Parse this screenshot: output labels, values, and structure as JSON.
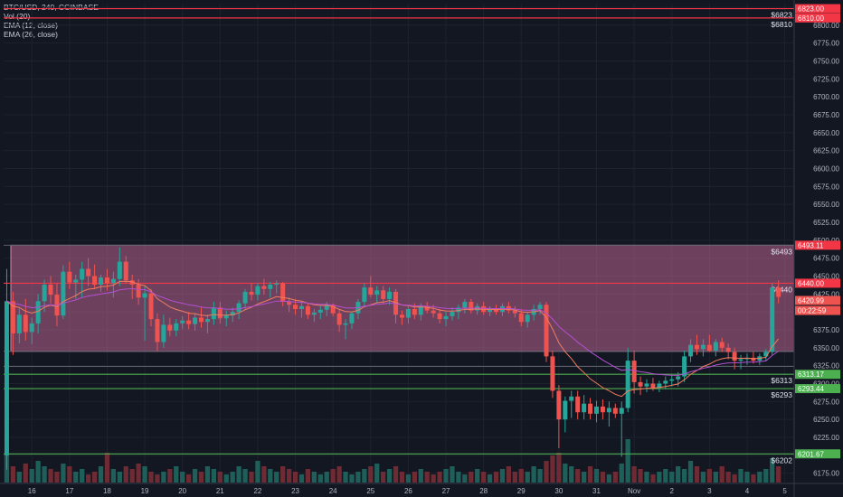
{
  "legend": {
    "symbol": "BTC/USD, 240, COINBASE",
    "vol": "Vol (20)",
    "ema12": "EMA (12, close)",
    "ema26": "EMA (26, close)"
  },
  "colors": {
    "background": "#131722",
    "up": "#26a69a",
    "down": "#ef5350",
    "ema12": "#f07c5e",
    "ema26": "#b44fd1",
    "zone_fill": "#c76b9a",
    "resistance": "#f23645",
    "support": "#4caf50",
    "volume_up": "#1f5f5a",
    "volume_down": "#6e2b33"
  },
  "chart_data": {
    "type": "candlestick",
    "y_axis": {
      "min": 6162,
      "max": 6830,
      "ticks": [
        6175,
        6200,
        6225,
        6250,
        6275,
        6300,
        6325,
        6350,
        6375,
        6400,
        6425,
        6450,
        6475,
        6500,
        6525,
        6550,
        6575,
        6600,
        6625,
        6650,
        6675,
        6700,
        6725,
        6750,
        6775,
        6800,
        6825
      ],
      "tick_labels": [
        "6175.00",
        "6200.00",
        "6225.00",
        "6250.00",
        "6275.00",
        "6300.00",
        "6325.00",
        "6350.00",
        "6375.00",
        "6400.00",
        "6425.00",
        "6450.00",
        "6475.00",
        "6500.00",
        "6525.00",
        "6550.00",
        "6575.00",
        "6600.00",
        "6625.00",
        "6650.00",
        "6675.00",
        "6700.00",
        "6725.00",
        "6750.00",
        "6775.00",
        "6800.00",
        "6825.00"
      ]
    },
    "x_axis": {
      "labels": [
        "16",
        "17",
        "18",
        "19",
        "20",
        "21",
        "22",
        "23",
        "24",
        "25",
        "26",
        "27",
        "28",
        "29",
        "30",
        "31",
        "Nov",
        "2",
        "3",
        "4",
        "5"
      ],
      "bars_per_day": 6,
      "start_offset": -2
    },
    "zone": {
      "top": 6493,
      "bottom": 6345
    },
    "resistance_lines": [
      {
        "price": 6823,
        "label": "$6823"
      },
      {
        "price": 6810,
        "label": "$6810"
      },
      {
        "price": 6440,
        "label": "$6440"
      }
    ],
    "support_lines": [
      {
        "price": 6313,
        "label": "$6313"
      },
      {
        "price": 6293,
        "label": "$6293"
      },
      {
        "price": 6202,
        "label": "$6202"
      }
    ],
    "grey_lines": [
      6493,
      6345,
      6324
    ],
    "price_tags": [
      {
        "price": 6823,
        "text": "6823.00",
        "color": "#f23645"
      },
      {
        "price": 6810,
        "text": "6810.00",
        "color": "#f23645"
      },
      {
        "price": 6493,
        "text": "6493.11",
        "color": "#f23645"
      },
      {
        "price": 6440,
        "text": "6440.00",
        "color": "#f23645"
      },
      {
        "price": 6416,
        "text": "6420.99",
        "color": "#ef5350"
      },
      {
        "price": 6402,
        "text": "00:22:59",
        "color": "#ef5350"
      },
      {
        "price": 6313,
        "text": "6313.17",
        "color": "#4caf50"
      },
      {
        "price": 6293,
        "text": "6293.44",
        "color": "#4caf50"
      },
      {
        "price": 6202,
        "text": "6201.67",
        "color": "#4caf50"
      }
    ],
    "candles": [
      [
        6200,
        6460,
        6180,
        6415
      ],
      [
        6415,
        6428,
        6340,
        6370
      ],
      [
        6370,
        6405,
        6356,
        6396
      ],
      [
        6396,
        6418,
        6360,
        6372
      ],
      [
        6372,
        6392,
        6355,
        6384
      ],
      [
        6384,
        6425,
        6370,
        6415
      ],
      [
        6415,
        6445,
        6400,
        6438
      ],
      [
        6438,
        6450,
        6412,
        6424
      ],
      [
        6424,
        6440,
        6380,
        6395
      ],
      [
        6395,
        6465,
        6390,
        6456
      ],
      [
        6456,
        6470,
        6432,
        6441
      ],
      [
        6441,
        6452,
        6418,
        6445
      ],
      [
        6445,
        6470,
        6420,
        6460
      ],
      [
        6460,
        6475,
        6436,
        6450
      ],
      [
        6450,
        6466,
        6432,
        6438
      ],
      [
        6438,
        6452,
        6428,
        6448
      ],
      [
        6448,
        6460,
        6430,
        6440
      ],
      [
        6440,
        6456,
        6420,
        6446
      ],
      [
        6446,
        6490,
        6436,
        6470
      ],
      [
        6470,
        6478,
        6440,
        6444
      ],
      [
        6444,
        6452,
        6418,
        6438
      ],
      [
        6438,
        6446,
        6410,
        6420
      ],
      [
        6420,
        6436,
        6360,
        6426
      ],
      [
        6426,
        6432,
        6380,
        6390
      ],
      [
        6390,
        6398,
        6345,
        6358
      ],
      [
        6358,
        6396,
        6350,
        6382
      ],
      [
        6382,
        6392,
        6366,
        6374
      ],
      [
        6374,
        6390,
        6366,
        6384
      ],
      [
        6384,
        6394,
        6376,
        6388
      ],
      [
        6388,
        6400,
        6376,
        6383
      ],
      [
        6383,
        6398,
        6374,
        6392
      ],
      [
        6392,
        6406,
        6378,
        6386
      ],
      [
        6386,
        6396,
        6370,
        6390
      ],
      [
        6390,
        6414,
        6382,
        6406
      ],
      [
        6406,
        6414,
        6384,
        6391
      ],
      [
        6391,
        6402,
        6380,
        6395
      ],
      [
        6395,
        6406,
        6386,
        6400
      ],
      [
        6400,
        6416,
        6390,
        6412
      ],
      [
        6412,
        6432,
        6404,
        6428
      ],
      [
        6428,
        6440,
        6416,
        6424
      ],
      [
        6424,
        6440,
        6416,
        6436
      ],
      [
        6436,
        6446,
        6424,
        6432
      ],
      [
        6432,
        6442,
        6420,
        6438
      ],
      [
        6438,
        6444,
        6426,
        6440
      ],
      [
        6440,
        6442,
        6408,
        6414
      ],
      [
        6414,
        6420,
        6400,
        6410
      ],
      [
        6410,
        6418,
        6396,
        6404
      ],
      [
        6404,
        6414,
        6392,
        6408
      ],
      [
        6408,
        6412,
        6390,
        6396
      ],
      [
        6396,
        6404,
        6386,
        6399
      ],
      [
        6399,
        6408,
        6390,
        6403
      ],
      [
        6403,
        6414,
        6394,
        6410
      ],
      [
        6410,
        6412,
        6394,
        6398
      ],
      [
        6398,
        6404,
        6372,
        6382
      ],
      [
        6382,
        6390,
        6362,
        6384
      ],
      [
        6384,
        6400,
        6376,
        6398
      ],
      [
        6398,
        6418,
        6390,
        6414
      ],
      [
        6414,
        6440,
        6408,
        6434
      ],
      [
        6434,
        6450,
        6420,
        6424
      ],
      [
        6424,
        6436,
        6412,
        6430
      ],
      [
        6430,
        6436,
        6412,
        6418
      ],
      [
        6418,
        6434,
        6410,
        6428
      ],
      [
        6428,
        6432,
        6384,
        6396
      ],
      [
        6396,
        6402,
        6382,
        6392
      ],
      [
        6392,
        6408,
        6384,
        6404
      ],
      [
        6404,
        6412,
        6390,
        6396
      ],
      [
        6396,
        6412,
        6388,
        6408
      ],
      [
        6408,
        6414,
        6398,
        6402
      ],
      [
        6402,
        6410,
        6392,
        6398
      ],
      [
        6398,
        6404,
        6384,
        6390
      ],
      [
        6390,
        6400,
        6380,
        6394
      ],
      [
        6394,
        6406,
        6388,
        6400
      ],
      [
        6400,
        6410,
        6390,
        6406
      ],
      [
        6406,
        6418,
        6398,
        6414
      ],
      [
        6414,
        6418,
        6398,
        6402
      ],
      [
        6402,
        6412,
        6396,
        6408
      ],
      [
        6408,
        6414,
        6396,
        6400
      ],
      [
        6400,
        6408,
        6394,
        6404
      ],
      [
        6404,
        6410,
        6396,
        6400
      ],
      [
        6400,
        6412,
        6394,
        6408
      ],
      [
        6408,
        6414,
        6398,
        6402
      ],
      [
        6402,
        6408,
        6392,
        6398
      ],
      [
        6398,
        6404,
        6380,
        6386
      ],
      [
        6386,
        6400,
        6378,
        6396
      ],
      [
        6396,
        6410,
        6388,
        6404
      ],
      [
        6404,
        6414,
        6396,
        6410
      ],
      [
        6410,
        6414,
        6330,
        6338
      ],
      [
        6338,
        6346,
        6280,
        6290
      ],
      [
        6290,
        6298,
        6210,
        6250
      ],
      [
        6250,
        6282,
        6232,
        6276
      ],
      [
        6276,
        6290,
        6252,
        6282
      ],
      [
        6282,
        6290,
        6250,
        6260
      ],
      [
        6260,
        6284,
        6250,
        6272
      ],
      [
        6272,
        6280,
        6250,
        6258
      ],
      [
        6258,
        6276,
        6246,
        6268
      ],
      [
        6268,
        6278,
        6250,
        6260
      ],
      [
        6260,
        6275,
        6240,
        6266
      ],
      [
        6266,
        6272,
        6252,
        6258
      ],
      [
        6258,
        6275,
        6198,
        6266
      ],
      [
        6266,
        6350,
        6260,
        6332
      ],
      [
        6332,
        6346,
        6286,
        6302
      ],
      [
        6302,
        6310,
        6284,
        6296
      ],
      [
        6296,
        6306,
        6288,
        6300
      ],
      [
        6300,
        6308,
        6290,
        6294
      ],
      [
        6294,
        6304,
        6288,
        6300
      ],
      [
        6300,
        6310,
        6292,
        6304
      ],
      [
        6304,
        6312,
        6296,
        6306
      ],
      [
        6306,
        6316,
        6296,
        6310
      ],
      [
        6310,
        6346,
        6302,
        6338
      ],
      [
        6338,
        6362,
        6330,
        6354
      ],
      [
        6354,
        6368,
        6340,
        6348
      ],
      [
        6348,
        6362,
        6338,
        6354
      ],
      [
        6354,
        6368,
        6344,
        6346
      ],
      [
        6346,
        6362,
        6338,
        6358
      ],
      [
        6358,
        6364,
        6344,
        6350
      ],
      [
        6350,
        6356,
        6334,
        6344
      ],
      [
        6344,
        6350,
        6320,
        6332
      ],
      [
        6332,
        6340,
        6320,
        6334
      ],
      [
        6334,
        6342,
        6326,
        6336
      ],
      [
        6336,
        6344,
        6328,
        6332
      ],
      [
        6332,
        6342,
        6326,
        6338
      ],
      [
        6338,
        6348,
        6332,
        6344
      ],
      [
        6344,
        6440,
        6340,
        6434
      ],
      [
        6434,
        6444,
        6412,
        6421
      ]
    ],
    "volumes": [
      0.55,
      0.3,
      0.2,
      0.35,
      0.25,
      0.4,
      0.3,
      0.25,
      0.2,
      0.35,
      0.3,
      0.2,
      0.25,
      0.15,
      0.2,
      0.3,
      0.55,
      0.25,
      0.2,
      0.3,
      0.25,
      0.35,
      0.3,
      0.2,
      0.15,
      0.2,
      0.25,
      0.3,
      0.2,
      0.15,
      0.25,
      0.2,
      0.3,
      0.25,
      0.2,
      0.15,
      0.2,
      0.3,
      0.25,
      0.2,
      0.4,
      0.3,
      0.25,
      0.2,
      0.3,
      0.25,
      0.2,
      0.15,
      0.25,
      0.2,
      0.15,
      0.2,
      0.25,
      0.3,
      0.2,
      0.15,
      0.2,
      0.25,
      0.3,
      0.35,
      0.2,
      0.25,
      0.3,
      0.2,
      0.15,
      0.2,
      0.25,
      0.2,
      0.15,
      0.2,
      0.25,
      0.3,
      0.2,
      0.15,
      0.2,
      0.25,
      0.2,
      0.15,
      0.2,
      0.25,
      0.3,
      0.2,
      0.25,
      0.2,
      0.3,
      0.25,
      0.4,
      0.5,
      0.55,
      0.35,
      0.3,
      0.25,
      0.2,
      0.3,
      0.25,
      0.2,
      0.15,
      0.2,
      0.35,
      0.8,
      0.3,
      0.25,
      0.2,
      0.15,
      0.2,
      0.25,
      0.2,
      0.3,
      0.25,
      0.4,
      0.3,
      0.2,
      0.25,
      0.2,
      0.3,
      0.2,
      0.15,
      0.25,
      0.2,
      0.15,
      0.2,
      0.25,
      0.45,
      0.3
    ]
  }
}
